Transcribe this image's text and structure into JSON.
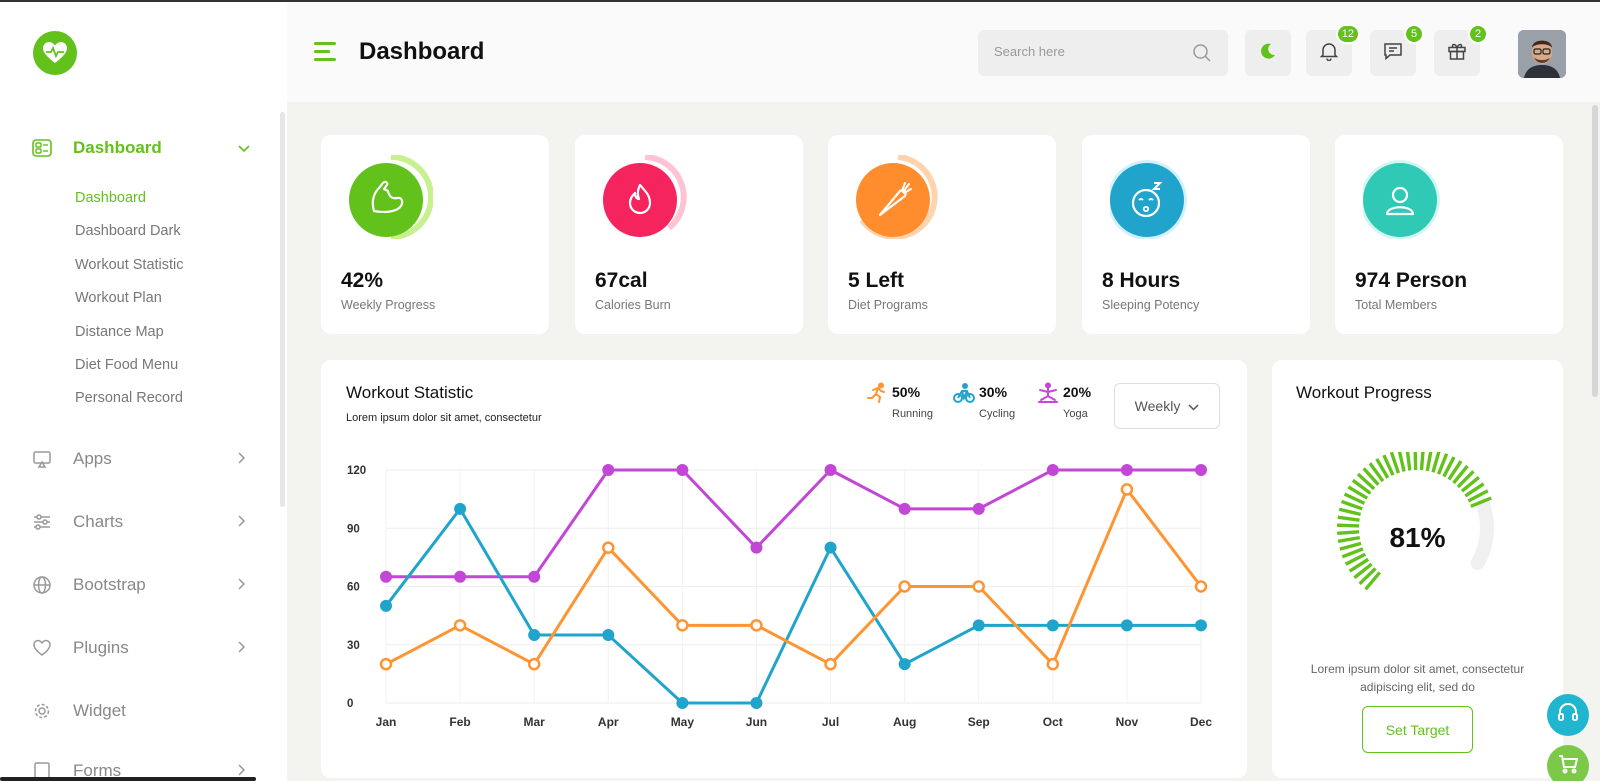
{
  "header": {
    "title": "Dashboard",
    "search_placeholder": "Search here",
    "badges": {
      "notifications": "12",
      "messages": "5",
      "gifts": "2"
    }
  },
  "sidebar": {
    "items": [
      {
        "label": "Dashboard",
        "icon": "dashboard-icon"
      },
      {
        "label": "Apps",
        "icon": "monitor-icon"
      },
      {
        "label": "Charts",
        "icon": "sliders-icon"
      },
      {
        "label": "Bootstrap",
        "icon": "globe-icon"
      },
      {
        "label": "Plugins",
        "icon": "heart-icon"
      },
      {
        "label": "Widget",
        "icon": "gear-icon"
      },
      {
        "label": "Forms",
        "icon": "form-icon"
      }
    ],
    "sub_items": [
      "Dashboard",
      "Dashboard Dark",
      "Workout Statistic",
      "Workout Plan",
      "Distance Map",
      "Diet Food Menu",
      "Personal Record"
    ]
  },
  "stats": [
    {
      "value": "42%",
      "label": "Weekly Progress",
      "color": "#62c11b",
      "ring": "#c9f08f",
      "icon": "muscle-icon"
    },
    {
      "value": "67cal",
      "label": "Calories Burn",
      "color": "#f5245e",
      "ring": "#ffc4d3",
      "icon": "flame-icon"
    },
    {
      "value": "5 Left",
      "label": "Diet Programs",
      "color": "#ff8d2e",
      "ring": "#ffd3ad",
      "icon": "carrot-icon"
    },
    {
      "value": "8 Hours",
      "label": "Sleeping Potency",
      "color": "#21a4cc",
      "ring": "#d4f1fb",
      "icon": "sleep-icon"
    },
    {
      "value": "974 Person",
      "label": "Total Members",
      "color": "#2fc9b6",
      "ring": "#d4f7f2",
      "icon": "person-icon"
    }
  ],
  "workout_statistic": {
    "title": "Workout Statistic",
    "subtitle": "Lorem ipsum dolor sit amet, consectetur",
    "legend": [
      {
        "pct": "50%",
        "name": "Running",
        "color": "#ff9432",
        "icon": "running-icon"
      },
      {
        "pct": "30%",
        "name": "Cycling",
        "color": "#21a4cc",
        "icon": "cycling-icon"
      },
      {
        "pct": "20%",
        "name": "Yoga",
        "color": "#c247d6",
        "icon": "yoga-icon"
      }
    ],
    "period": "Weekly"
  },
  "chart_data": {
    "type": "line",
    "categories": [
      "Jan",
      "Feb",
      "Mar",
      "Apr",
      "May",
      "Jun",
      "Jul",
      "Aug",
      "Sep",
      "Oct",
      "Nov",
      "Dec"
    ],
    "yticks": [
      0,
      30,
      60,
      90,
      120
    ],
    "ylim": [
      0,
      120
    ],
    "grid": true,
    "series": [
      {
        "name": "Yoga",
        "color": "#c247d6",
        "marker": "filled",
        "values": [
          65,
          65,
          65,
          120,
          120,
          80,
          120,
          100,
          100,
          120,
          120,
          120
        ]
      },
      {
        "name": "Cycling",
        "color": "#21a4cc",
        "marker": "filled",
        "values": [
          50,
          100,
          35,
          35,
          0,
          0,
          80,
          20,
          40,
          40,
          40,
          40
        ]
      },
      {
        "name": "Running",
        "color": "#ff9432",
        "marker": "hollow",
        "values": [
          20,
          40,
          20,
          80,
          40,
          40,
          20,
          60,
          60,
          20,
          110,
          60
        ]
      }
    ]
  },
  "workout_progress": {
    "title": "Workout Progress",
    "value": "81%",
    "progress": 0.81,
    "description": "Lorem ipsum dolor sit amet, consectetur adipiscing elit, sed do",
    "button": "Set Target"
  }
}
